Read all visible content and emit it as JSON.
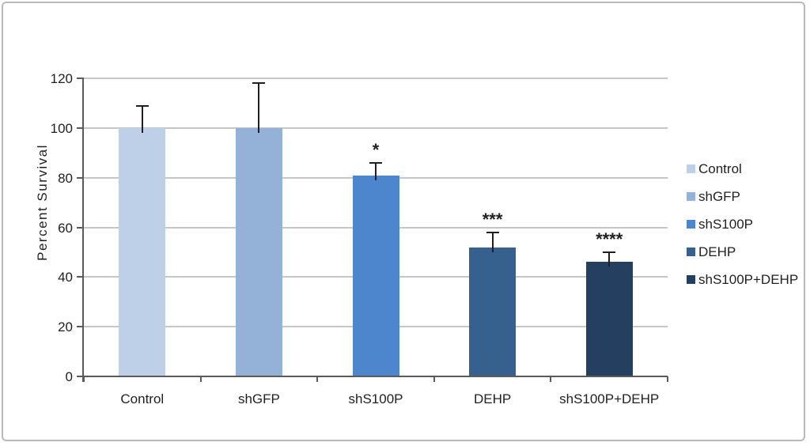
{
  "figure": {
    "background": "#ffffff",
    "border_color": "#b9b9b9"
  },
  "chart_data": {
    "type": "bar",
    "title": "",
    "xlabel": "",
    "ylabel": "Percent Survival",
    "categories": [
      "Control",
      "shGFP",
      "shS100P",
      "DEHP",
      "shS100P+DEHP"
    ],
    "values": [
      100,
      100,
      81,
      52,
      46
    ],
    "error_bars_plus": [
      9,
      18,
      5,
      6,
      4
    ],
    "significance_labels": [
      "",
      "",
      "*",
      "***",
      "****"
    ],
    "bar_colors": [
      "#bed0e8",
      "#94b2d8",
      "#4e86ce",
      "#36618f",
      "#253f60"
    ],
    "ylim": [
      0,
      120
    ],
    "yticks": [
      0,
      20,
      40,
      60,
      80,
      100,
      120
    ],
    "grid": true,
    "axis_color": "#5a5a5a",
    "gridline_color": "#c6c6c6",
    "error_bar_color": "#1f1f1f",
    "text_color": "#1f1f1f",
    "legend": {
      "position": "right",
      "entries": [
        {
          "label": "Control",
          "color": "#bed0e8"
        },
        {
          "label": "shGFP",
          "color": "#94b2d8"
        },
        {
          "label": "shS100P",
          "color": "#4e86ce"
        },
        {
          "label": "DEHP",
          "color": "#36618f"
        },
        {
          "label": "shS100P+DEHP",
          "color": "#253f60"
        }
      ]
    }
  }
}
